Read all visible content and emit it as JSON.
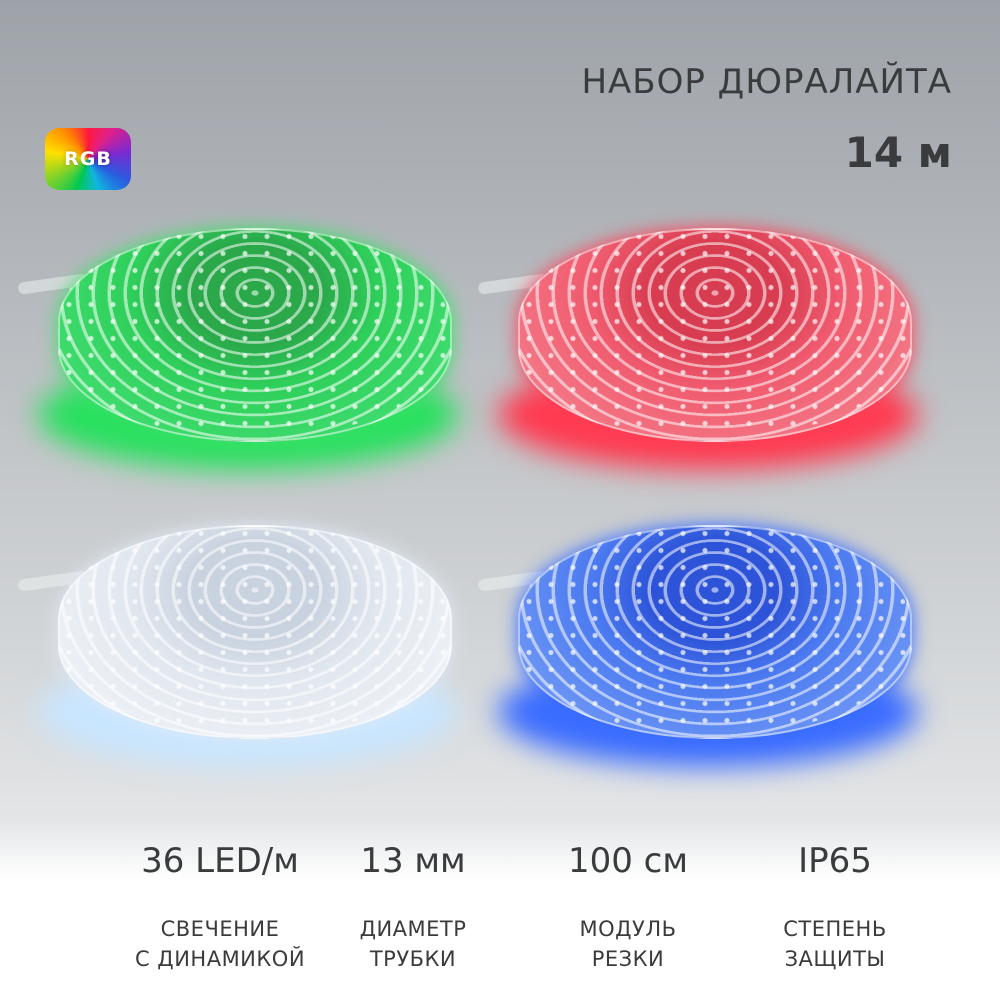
{
  "header": {
    "title": "НАБОР ДЮРАЛАЙТА",
    "length": "14 м",
    "badge": "RGB"
  },
  "panels": [
    {
      "color_name": "green",
      "glow_color": "#2ee06a"
    },
    {
      "color_name": "red",
      "glow_color": "#ff3a50"
    },
    {
      "color_name": "white",
      "glow_color": "#d6e8ff"
    },
    {
      "color_name": "blue",
      "glow_color": "#3a6cff"
    }
  ],
  "specs": [
    {
      "value": "36 LED/м",
      "label_line1": "СВЕЧЕНИЕ",
      "label_line2": "С ДИНАМИКОЙ"
    },
    {
      "value": "13 мм",
      "label_line1": "ДИАМЕТР",
      "label_line2": "ТРУБКИ"
    },
    {
      "value": "100 см",
      "label_line1": "МОДУЛЬ",
      "label_line2": "РЕЗКИ"
    },
    {
      "value": "IP65",
      "label_line1": "СТЕПЕНЬ",
      "label_line2": "ЗАЩИТЫ"
    }
  ]
}
